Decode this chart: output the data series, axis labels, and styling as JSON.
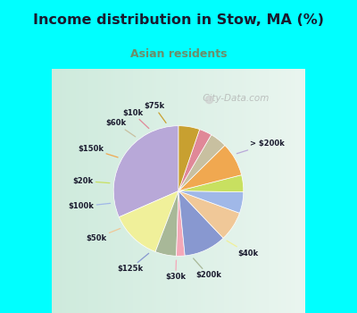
{
  "title": "Income distribution in Stow, MA (%)",
  "subtitle": "Asian residents",
  "title_color": "#1a1a2e",
  "subtitle_color": "#6b8e6b",
  "background_outer": "#00ffff",
  "background_inner": "#e0f0e8",
  "labels": [
    "> $200k",
    "$40k",
    "$200k",
    "$30k",
    "$125k",
    "$50k",
    "$100k",
    "$20k",
    "$150k",
    "$60k",
    "$10k",
    "$75k"
  ],
  "values": [
    30,
    12,
    5,
    2,
    10,
    7,
    5,
    4,
    8,
    4,
    3,
    5
  ],
  "colors": [
    "#b8a8d8",
    "#f0f09a",
    "#a8b898",
    "#f4a8b8",
    "#8898d0",
    "#f0c898",
    "#a0b8e8",
    "#c8e060",
    "#f0a850",
    "#c8c0a0",
    "#e08898",
    "#c8a030"
  ],
  "line_colors": [
    "#b8a8d8",
    "#f0f09a",
    "#a8b898",
    "#f4a8b8",
    "#8898d0",
    "#f0c898",
    "#a0b8e8",
    "#c8e060",
    "#f0a850",
    "#c8c0a0",
    "#e08898",
    "#c8a030"
  ],
  "watermark": " City-Data.com"
}
